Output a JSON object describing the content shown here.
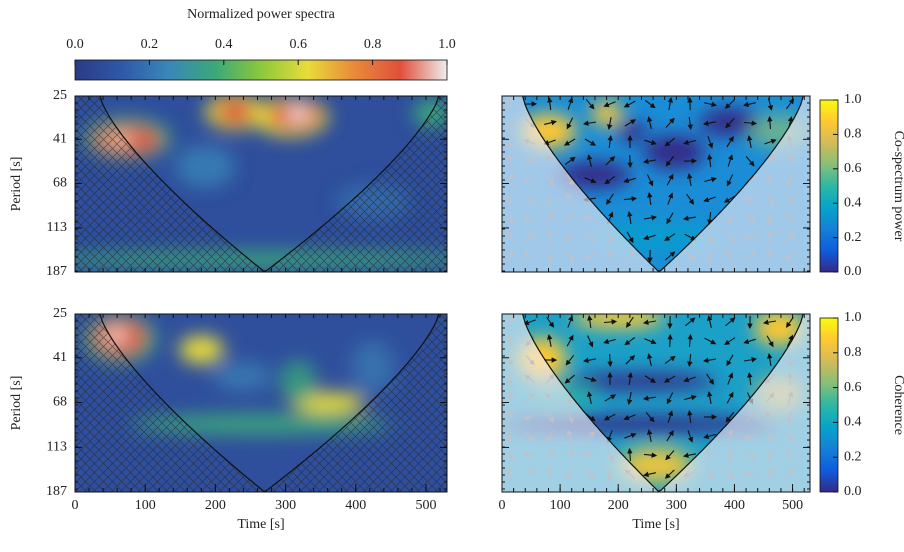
{
  "chart_data": [
    {
      "type": "heatmap",
      "ylabel": "Period [s]",
      "xlim": [
        0,
        530
      ],
      "ylim": [
        25,
        187
      ],
      "log_y": true,
      "yticks": [
        25,
        41,
        68,
        113,
        187
      ],
      "colorbar": {
        "label": "Normalized power spectra",
        "lim": [
          0,
          1
        ],
        "orientation": "horizontal",
        "colors": [
          "#2b3a85",
          "#2f58a8",
          "#3a86b8",
          "#3aa87a",
          "#8cc83c",
          "#e8dc3a",
          "#e88a3a",
          "#e0503c",
          "#eeeeee"
        ],
        "ticks": [
          {
            "value": 0,
            "label": "0.0"
          },
          0.2,
          0.4,
          0.6,
          0.8,
          {
            "value": 1,
            "label": "1.0"
          }
        ]
      }
    },
    {
      "type": "heatmap",
      "xlim": [
        0,
        530
      ],
      "ylim": [
        25,
        187
      ],
      "log_y": true,
      "colorbar": {
        "label": "Co-spectrum power",
        "lim": [
          0,
          1
        ],
        "orientation": "vertical",
        "colors": [
          "#352a87",
          "#0f5cdd",
          "#1481d6",
          "#06a4ca",
          "#2eb7a4",
          "#87bf77",
          "#d1bb59",
          "#fec832",
          "#f9fb0e"
        ],
        "ticks": [
          {
            "value": 0,
            "label": "0.0"
          },
          0.2,
          0.4,
          0.6,
          0.8,
          {
            "value": 1,
            "label": "1.0"
          }
        ]
      }
    },
    {
      "type": "heatmap",
      "ylabel": "Period [s]",
      "xlabel": "Time [s]",
      "xlim": [
        0,
        530
      ],
      "ylim": [
        25,
        187
      ],
      "log_y": true,
      "xticks": [
        0,
        100,
        200,
        300,
        400,
        500
      ],
      "yticks": [
        25,
        41,
        68,
        113,
        187
      ]
    },
    {
      "type": "heatmap",
      "xlabel": "Time [s]",
      "xlim": [
        0,
        530
      ],
      "ylim": [
        25,
        187
      ],
      "log_y": true,
      "xticks": [
        0,
        100,
        200,
        300,
        400,
        500
      ],
      "colorbar": {
        "label": "Coherence",
        "lim": [
          0,
          1
        ],
        "orientation": "vertical",
        "colors": [
          "#352a87",
          "#0f5cdd",
          "#1481d6",
          "#06a4ca",
          "#2eb7a4",
          "#87bf77",
          "#d1bb59",
          "#fec832",
          "#f9fb0e"
        ],
        "ticks": [
          {
            "value": 0,
            "label": "0.0"
          },
          0.2,
          0.4,
          0.6,
          0.8,
          {
            "value": 1,
            "label": "1.0"
          }
        ]
      }
    }
  ]
}
